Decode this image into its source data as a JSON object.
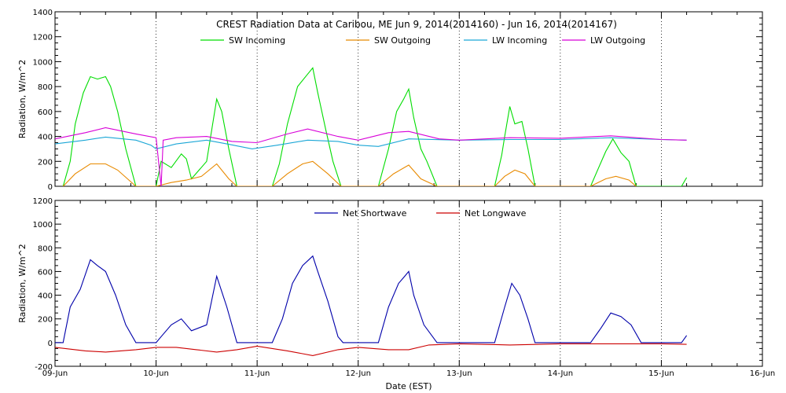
{
  "chart_data": [
    {
      "type": "line",
      "title": "CREST Radiation Data at Caribou, ME   Jun  9, 2014(2014160) - Jun 16, 2014(2014167)",
      "xlabel": "",
      "ylabel": "Radiation, W/m^2",
      "x_ticks": [
        "09-Jun",
        "10-Jun",
        "11-Jun",
        "12-Jun",
        "13-Jun",
        "14-Jun",
        "15-Jun",
        "16-Jun"
      ],
      "y_ticks": [
        "0",
        "200",
        "400",
        "600",
        "800",
        "1000",
        "1200",
        "1400"
      ],
      "ylim": [
        0,
        1400
      ],
      "xlim_days": [
        0,
        7
      ],
      "grid": "vertical dotted at each day",
      "legend": "top-center",
      "series": [
        {
          "name": "SW Incoming",
          "color": "#00dd00",
          "points": [
            [
              0.08,
              0
            ],
            [
              0.15,
              200
            ],
            [
              0.2,
              500
            ],
            [
              0.28,
              750
            ],
            [
              0.35,
              880
            ],
            [
              0.42,
              860
            ],
            [
              0.5,
              880
            ],
            [
              0.55,
              800
            ],
            [
              0.62,
              600
            ],
            [
              0.7,
              300
            ],
            [
              0.8,
              0
            ],
            [
              1.0,
              0
            ],
            [
              1.05,
              200
            ],
            [
              1.15,
              150
            ],
            [
              1.25,
              260
            ],
            [
              1.3,
              220
            ],
            [
              1.35,
              60
            ],
            [
              1.5,
              200
            ],
            [
              1.6,
              700
            ],
            [
              1.65,
              600
            ],
            [
              1.72,
              300
            ],
            [
              1.8,
              0
            ],
            [
              2.15,
              0
            ],
            [
              2.22,
              180
            ],
            [
              2.3,
              500
            ],
            [
              2.4,
              800
            ],
            [
              2.5,
              900
            ],
            [
              2.55,
              950
            ],
            [
              2.6,
              750
            ],
            [
              2.68,
              450
            ],
            [
              2.75,
              200
            ],
            [
              2.83,
              0
            ],
            [
              3.2,
              0
            ],
            [
              3.3,
              300
            ],
            [
              3.38,
              600
            ],
            [
              3.45,
              700
            ],
            [
              3.5,
              780
            ],
            [
              3.55,
              550
            ],
            [
              3.62,
              300
            ],
            [
              3.68,
              200
            ],
            [
              3.78,
              0
            ],
            [
              4.35,
              0
            ],
            [
              4.42,
              250
            ],
            [
              4.45,
              400
            ],
            [
              4.5,
              640
            ],
            [
              4.55,
              500
            ],
            [
              4.62,
              520
            ],
            [
              4.68,
              300
            ],
            [
              4.75,
              0
            ],
            [
              5.3,
              0
            ],
            [
              5.38,
              150
            ],
            [
              5.45,
              280
            ],
            [
              5.52,
              380
            ],
            [
              5.6,
              270
            ],
            [
              5.68,
              200
            ],
            [
              5.75,
              0
            ],
            [
              6.2,
              0
            ],
            [
              6.25,
              70
            ]
          ]
        },
        {
          "name": "SW Outgoing",
          "color": "#e88a00",
          "points": [
            [
              0.08,
              0
            ],
            [
              0.2,
              100
            ],
            [
              0.35,
              180
            ],
            [
              0.5,
              180
            ],
            [
              0.62,
              130
            ],
            [
              0.8,
              0
            ],
            [
              1.0,
              0
            ],
            [
              1.15,
              30
            ],
            [
              1.3,
              50
            ],
            [
              1.45,
              80
            ],
            [
              1.6,
              180
            ],
            [
              1.72,
              60
            ],
            [
              1.8,
              0
            ],
            [
              2.15,
              0
            ],
            [
              2.3,
              100
            ],
            [
              2.45,
              180
            ],
            [
              2.55,
              200
            ],
            [
              2.7,
              100
            ],
            [
              2.83,
              0
            ],
            [
              3.2,
              0
            ],
            [
              3.35,
              100
            ],
            [
              3.5,
              170
            ],
            [
              3.62,
              60
            ],
            [
              3.78,
              0
            ],
            [
              4.35,
              0
            ],
            [
              4.45,
              80
            ],
            [
              4.55,
              130
            ],
            [
              4.65,
              100
            ],
            [
              4.75,
              0
            ],
            [
              5.3,
              0
            ],
            [
              5.45,
              60
            ],
            [
              5.55,
              80
            ],
            [
              5.68,
              50
            ],
            [
              5.75,
              0
            ]
          ]
        },
        {
          "name": "LW Incoming",
          "color": "#1aa6d6",
          "points": [
            [
              0,
              340
            ],
            [
              0.3,
              370
            ],
            [
              0.5,
              395
            ],
            [
              0.8,
              370
            ],
            [
              0.95,
              330
            ],
            [
              1.0,
              300
            ],
            [
              1.2,
              340
            ],
            [
              1.5,
              370
            ],
            [
              1.7,
              340
            ],
            [
              1.95,
              300
            ],
            [
              2.2,
              330
            ],
            [
              2.5,
              370
            ],
            [
              2.8,
              360
            ],
            [
              3.0,
              330
            ],
            [
              3.2,
              320
            ],
            [
              3.5,
              380
            ],
            [
              4.0,
              370
            ],
            [
              4.5,
              375
            ],
            [
              5.0,
              375
            ],
            [
              5.5,
              390
            ],
            [
              6.0,
              375
            ],
            [
              6.25,
              370
            ]
          ]
        },
        {
          "name": "LW Outgoing",
          "color": "#d800d8",
          "points": [
            [
              0,
              380
            ],
            [
              0.3,
              430
            ],
            [
              0.5,
              470
            ],
            [
              0.8,
              420
            ],
            [
              1.0,
              390
            ],
            [
              1.05,
              0
            ],
            [
              1.07,
              370
            ],
            [
              1.2,
              390
            ],
            [
              1.5,
              400
            ],
            [
              1.75,
              360
            ],
            [
              2.0,
              350
            ],
            [
              2.3,
              420
            ],
            [
              2.5,
              460
            ],
            [
              2.8,
              400
            ],
            [
              3.0,
              370
            ],
            [
              3.3,
              430
            ],
            [
              3.5,
              440
            ],
            [
              3.8,
              380
            ],
            [
              4.0,
              370
            ],
            [
              4.5,
              390
            ],
            [
              5.0,
              385
            ],
            [
              5.5,
              405
            ],
            [
              6.0,
              375
            ],
            [
              6.25,
              370
            ]
          ]
        }
      ]
    },
    {
      "type": "line",
      "title": "",
      "xlabel": "Date (EST)",
      "ylabel": "Radiation, W/m^2",
      "x_ticks": [
        "09-Jun",
        "10-Jun",
        "11-Jun",
        "12-Jun",
        "13-Jun",
        "14-Jun",
        "15-Jun",
        "16-Jun"
      ],
      "y_ticks": [
        "-200",
        "0",
        "200",
        "400",
        "600",
        "800",
        "1000",
        "1200"
      ],
      "ylim": [
        -200,
        1200
      ],
      "xlim_days": [
        0,
        7
      ],
      "grid": "vertical dotted at each day",
      "legend": "top-center",
      "series": [
        {
          "name": "Net Shortwave",
          "color": "#0000aa",
          "points": [
            [
              0,
              0
            ],
            [
              0.08,
              0
            ],
            [
              0.15,
              300
            ],
            [
              0.25,
              450
            ],
            [
              0.35,
              700
            ],
            [
              0.42,
              650
            ],
            [
              0.5,
              600
            ],
            [
              0.6,
              400
            ],
            [
              0.7,
              150
            ],
            [
              0.8,
              0
            ],
            [
              1.0,
              0
            ],
            [
              1.05,
              50
            ],
            [
              1.15,
              150
            ],
            [
              1.25,
              200
            ],
            [
              1.35,
              100
            ],
            [
              1.5,
              150
            ],
            [
              1.6,
              560
            ],
            [
              1.7,
              300
            ],
            [
              1.8,
              0
            ],
            [
              2.15,
              0
            ],
            [
              2.25,
              200
            ],
            [
              2.35,
              500
            ],
            [
              2.45,
              650
            ],
            [
              2.55,
              730
            ],
            [
              2.6,
              600
            ],
            [
              2.7,
              350
            ],
            [
              2.8,
              50
            ],
            [
              2.85,
              0
            ],
            [
              3.2,
              0
            ],
            [
              3.3,
              300
            ],
            [
              3.4,
              500
            ],
            [
              3.45,
              550
            ],
            [
              3.5,
              600
            ],
            [
              3.55,
              400
            ],
            [
              3.65,
              150
            ],
            [
              3.78,
              0
            ],
            [
              4.35,
              0
            ],
            [
              4.45,
              300
            ],
            [
              4.52,
              500
            ],
            [
              4.6,
              400
            ],
            [
              4.68,
              200
            ],
            [
              4.75,
              0
            ],
            [
              5.3,
              0
            ],
            [
              5.4,
              120
            ],
            [
              5.5,
              250
            ],
            [
              5.6,
              220
            ],
            [
              5.7,
              150
            ],
            [
              5.8,
              0
            ],
            [
              6.2,
              0
            ],
            [
              6.25,
              60
            ]
          ]
        },
        {
          "name": "Net Longwave",
          "color": "#cc0000",
          "points": [
            [
              0,
              -40
            ],
            [
              0.3,
              -70
            ],
            [
              0.5,
              -80
            ],
            [
              0.8,
              -60
            ],
            [
              1.0,
              -40
            ],
            [
              1.2,
              -40
            ],
            [
              1.4,
              -60
            ],
            [
              1.6,
              -80
            ],
            [
              1.8,
              -60
            ],
            [
              2.0,
              -30
            ],
            [
              2.3,
              -70
            ],
            [
              2.55,
              -110
            ],
            [
              2.8,
              -60
            ],
            [
              3.0,
              -40
            ],
            [
              3.3,
              -60
            ],
            [
              3.5,
              -60
            ],
            [
              3.7,
              -20
            ],
            [
              4.0,
              -10
            ],
            [
              4.5,
              -20
            ],
            [
              5.0,
              -10
            ],
            [
              5.5,
              -10
            ],
            [
              6.0,
              -10
            ],
            [
              6.25,
              -15
            ]
          ]
        }
      ]
    }
  ]
}
